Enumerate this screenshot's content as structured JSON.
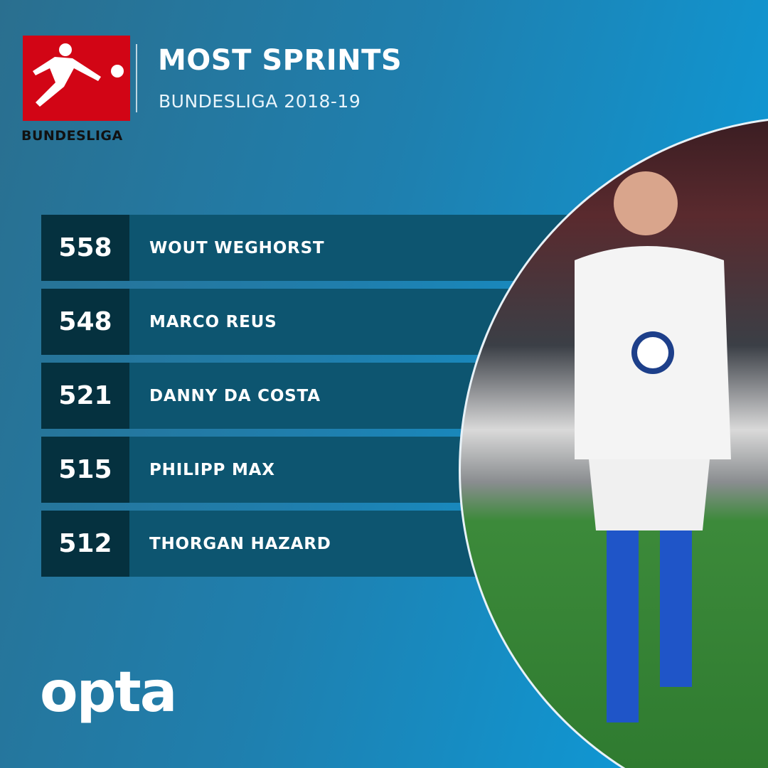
{
  "header": {
    "logo_text": "BUNDESLIGA",
    "title": "MOST SPRINTS",
    "subtitle": "BUNDESLIGA 2018-19"
  },
  "rows": [
    {
      "value": "558",
      "player": "WOUT WEGHORST"
    },
    {
      "value": "548",
      "player": "MARCO REUS"
    },
    {
      "value": "521",
      "player": "DANNY DA COSTA"
    },
    {
      "value": "515",
      "player": "PHILIPP MAX"
    },
    {
      "value": "512",
      "player": "THORGAN HAZARD"
    }
  ],
  "footer": {
    "brand": "opta"
  },
  "colors": {
    "logo_red": "#d20515",
    "value_box": "#05313f",
    "name_box": "#0d5570",
    "accent": "#0a9fe0"
  }
}
